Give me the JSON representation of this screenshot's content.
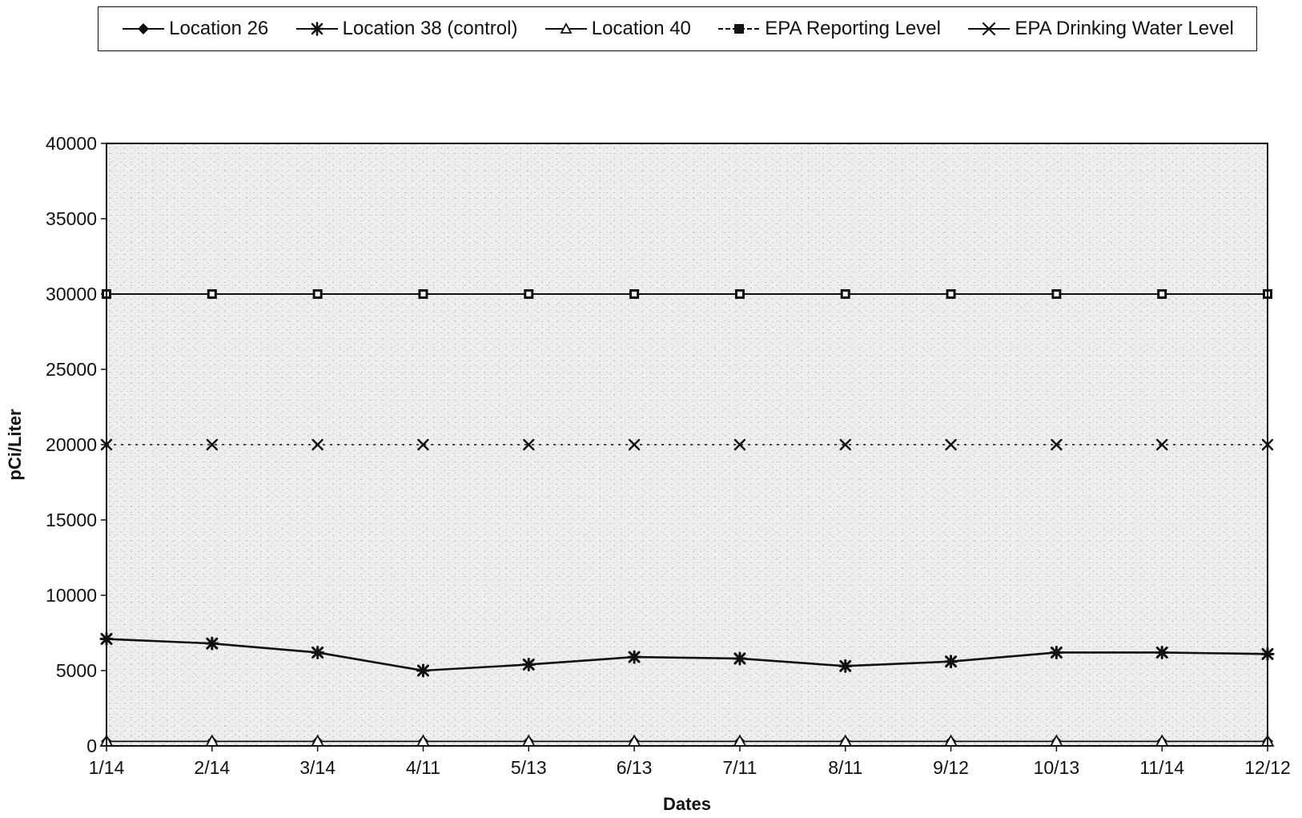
{
  "chart_data": {
    "type": "line",
    "title": "",
    "xlabel": "Dates",
    "ylabel": "pCi/Liter",
    "categories": [
      "1/14",
      "2/14",
      "3/14",
      "4/11",
      "5/13",
      "6/13",
      "7/11",
      "8/11",
      "9/12",
      "10/13",
      "11/14",
      "12/12"
    ],
    "ylim": [
      0,
      40000
    ],
    "yticks": [
      0,
      5000,
      10000,
      15000,
      20000,
      25000,
      30000,
      35000,
      40000
    ],
    "grid": false,
    "legend_placement": "top",
    "series": [
      {
        "name": "Location 26",
        "marker": "diamond",
        "values": [
          300,
          300,
          300,
          300,
          300,
          300,
          300,
          300,
          300,
          300,
          300,
          300
        ]
      },
      {
        "name": "Location 38 (control)",
        "marker": "star",
        "values": [
          7100,
          6800,
          6200,
          5000,
          5400,
          5900,
          5800,
          5300,
          5600,
          6200,
          6200,
          6100
        ]
      },
      {
        "name": "Location 40",
        "marker": "triangle",
        "values": [
          300,
          300,
          300,
          300,
          300,
          300,
          300,
          300,
          300,
          300,
          300,
          300
        ]
      },
      {
        "name": "EPA Reporting Level",
        "marker": "square",
        "values": [
          30000,
          30000,
          30000,
          30000,
          30000,
          30000,
          30000,
          30000,
          30000,
          30000,
          30000,
          30000
        ]
      },
      {
        "name": "EPA Drinking Water Level",
        "marker": "x",
        "values": [
          20000,
          20000,
          20000,
          20000,
          20000,
          20000,
          20000,
          20000,
          20000,
          20000,
          20000,
          20000
        ]
      }
    ]
  },
  "colors": {
    "plot_background": "#eeeeee",
    "line": "#111111",
    "page": "#ffffff"
  }
}
